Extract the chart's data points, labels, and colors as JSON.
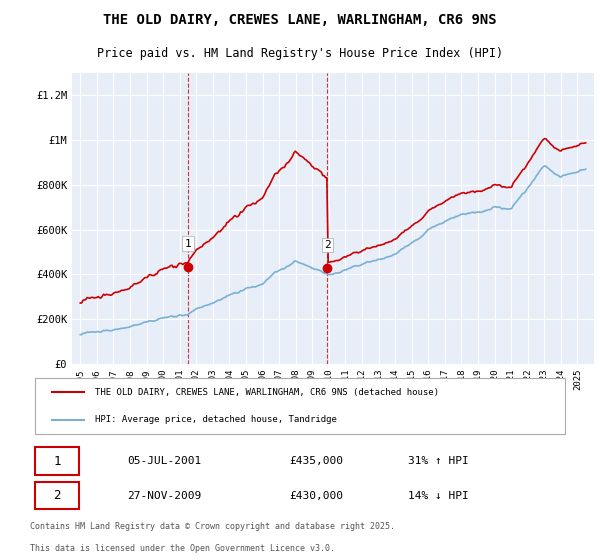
{
  "title": "THE OLD DAIRY, CREWES LANE, WARLINGHAM, CR6 9NS",
  "subtitle": "Price paid vs. HM Land Registry's House Price Index (HPI)",
  "background_color": "#ffffff",
  "plot_bg_color": "#e8eef8",
  "ylim": [
    0,
    1300000
  ],
  "yticks": [
    0,
    200000,
    400000,
    600000,
    800000,
    1000000,
    1200000
  ],
  "ytick_labels": [
    "£0",
    "£200K",
    "£400K",
    "£600K",
    "£800K",
    "£1M",
    "£1.2M"
  ],
  "purchase1": {
    "date_num": 2001.5,
    "price": 435000,
    "label": "1",
    "date_str": "05-JUL-2001",
    "pct": "31% ↑ HPI"
  },
  "purchase2": {
    "date_num": 2009.9,
    "price": 430000,
    "label": "2",
    "date_str": "27-NOV-2009",
    "pct": "14% ↓ HPI"
  },
  "legend_line1": "THE OLD DAIRY, CREWES LANE, WARLINGHAM, CR6 9NS (detached house)",
  "legend_line2": "HPI: Average price, detached house, Tandridge",
  "footer1": "Contains HM Land Registry data © Crown copyright and database right 2025.",
  "footer2": "This data is licensed under the Open Government Licence v3.0.",
  "red_color": "#cc0000",
  "blue_color": "#7ab0d4",
  "vline_color": "#cc0000",
  "dot_color": "#cc0000"
}
